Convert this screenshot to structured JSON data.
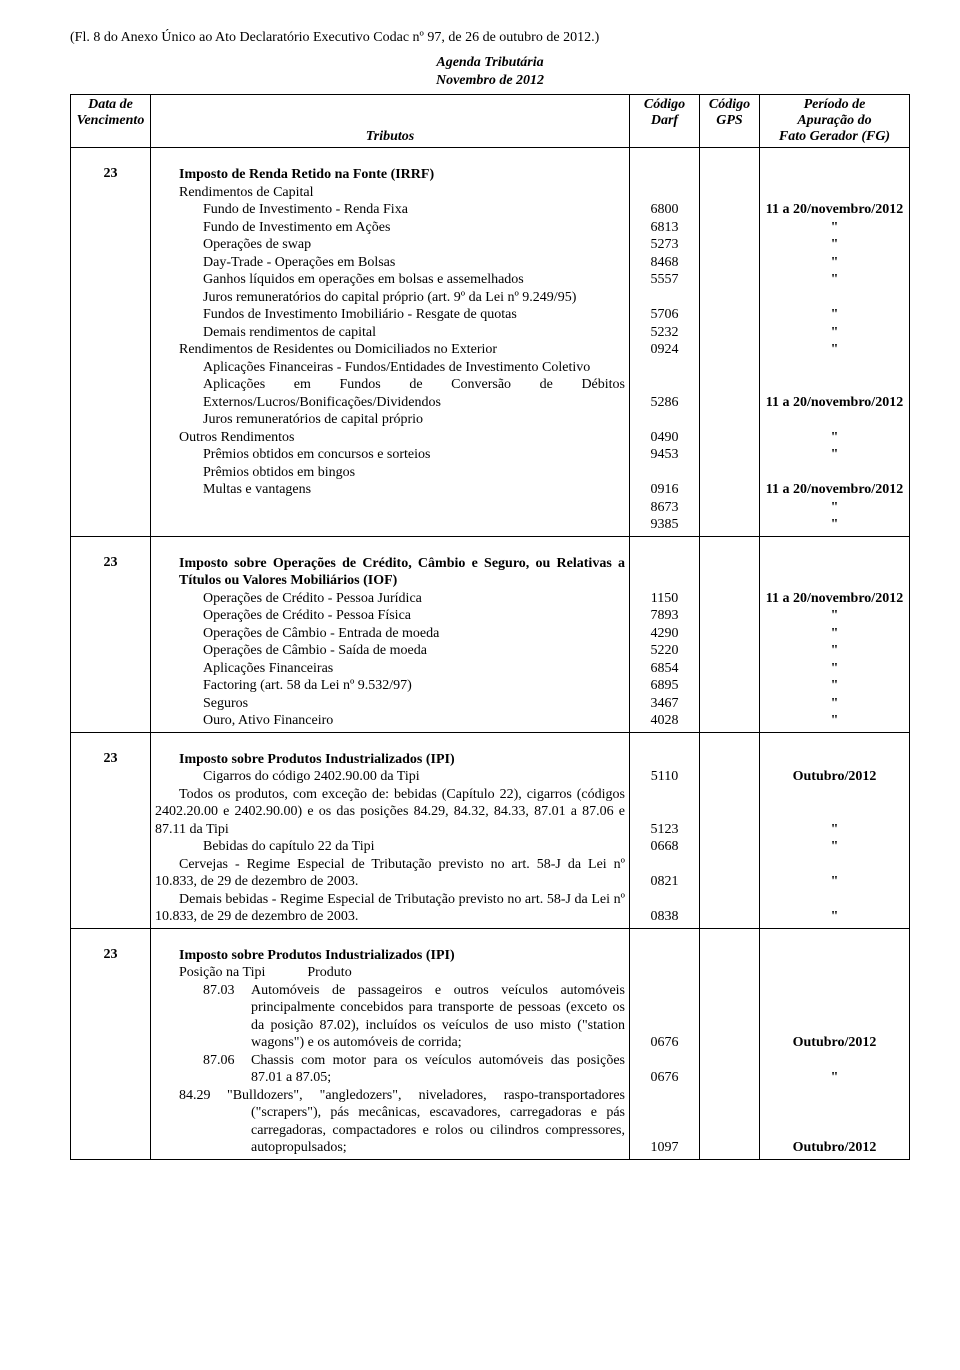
{
  "header_note": "(Fl. 8 do Anexo Único ao Ato Declaratório Executivo Codac nº 97, de 26 de outubro de 2012.)",
  "title_line1": "Agenda Tributária",
  "title_line2": "Novembro de 2012",
  "col_headers": {
    "venc1": "Data de",
    "venc2": "Vencimento",
    "trib": "Tributos",
    "darf1": "Código",
    "darf2": "Darf",
    "gps1": "Código",
    "gps2": "GPS",
    "per1": "Período de",
    "per2": "Apuração do",
    "per3": "Fato Gerador (FG)"
  },
  "sections": [
    {
      "venc": "23",
      "title": "Imposto de Renda Retido na Fonte (IRRF)",
      "groups": [
        {
          "heading": "Rendimentos de Capital",
          "lines": [
            {
              "label": "Fundo de Investimento - Renda Fixa",
              "darf": "6800",
              "per": "11 a 20/novembro/2012"
            },
            {
              "label": "Fundo de Investimento em Ações",
              "darf": "6813",
              "per": "\""
            },
            {
              "label": "Operações de swap",
              "darf": "5273",
              "per": "\""
            },
            {
              "label": "Day-Trade - Operações em Bolsas",
              "darf": "8468",
              "per": "\""
            },
            {
              "label": "Ganhos líquidos em operações em bolsas e assemelhados",
              "darf": "5557",
              "per": "\""
            },
            {
              "label": "Juros remuneratórios do capital próprio (art. 9º da Lei nº 9.249/95)",
              "darf": "5706",
              "per": "\"",
              "wrap2": true
            },
            {
              "label": "Fundos de Investimento Imobiliário - Resgate de quotas",
              "darf": "5232",
              "per": "\""
            },
            {
              "label": "Demais rendimentos de capital",
              "darf": "0924",
              "per": "\""
            }
          ]
        },
        {
          "heading": "Rendimentos de Residentes ou Domiciliados no Exterior",
          "lines": [
            {
              "label": "Aplicações Financeiras - Fundos/Entidades de Investimento Coletivo",
              "darf": "5286",
              "per": "11 a 20/novembro/2012",
              "wrap2": true
            },
            {
              "label": "Aplicações em Fundos de Conversão de Débitos Externos/Lucros/Bonificações/Dividendos",
              "darf": "0490",
              "per": "\"",
              "wrap2": true
            },
            {
              "label": "Juros remuneratórios de capital próprio",
              "darf": "9453",
              "per": "\""
            }
          ]
        },
        {
          "heading": "Outros Rendimentos",
          "lines": [
            {
              "label": "Prêmios obtidos em concursos e sorteios",
              "darf": "0916",
              "per": "11 a 20/novembro/2012"
            },
            {
              "label": "Prêmios obtidos em bingos",
              "darf": "8673",
              "per": "\""
            },
            {
              "label": "Multas e vantagens",
              "darf": "9385",
              "per": "\""
            }
          ]
        }
      ]
    },
    {
      "venc": "23",
      "title": "Imposto sobre Operações de Crédito, Câmbio e Seguro, ou Relativas a Títulos ou Valores Mobiliários (IOF)",
      "title_wrap2": true,
      "lines": [
        {
          "label": "Operações de Crédito - Pessoa Jurídica",
          "darf": "1150",
          "per": "11 a 20/novembro/2012"
        },
        {
          "label": "Operações de Crédito - Pessoa Física",
          "darf": "7893",
          "per": "\""
        },
        {
          "label": "Operações de Câmbio - Entrada de moeda",
          "darf": "4290",
          "per": "\""
        },
        {
          "label": "Operações de Câmbio - Saída de moeda",
          "darf": "5220",
          "per": "\""
        },
        {
          "label": "Aplicações Financeiras",
          "darf": "6854",
          "per": "\""
        },
        {
          "label": "Factoring (art. 58 da Lei nº 9.532/97)",
          "darf": "6895",
          "per": "\""
        },
        {
          "label": "Seguros",
          "darf": "3467",
          "per": "\""
        },
        {
          "label": "Ouro, Ativo Financeiro",
          "darf": "4028",
          "per": "\""
        }
      ]
    },
    {
      "venc": "23",
      "title": "Imposto sobre Produtos Industrializados (IPI)",
      "lines": [
        {
          "label": "Cigarros do código 2402.90.00 da Tipi",
          "darf": "5110",
          "per": "Outubro/2012"
        },
        {
          "label": "Todos os produtos, com exceção de: bebidas (Capítulo 22), cigarros (códigos 2402.20.00 e 2402.90.00) e os das posições 84.29, 84.32, 84.33, 87.01 a 87.06 e 87.11 da Tipi",
          "darf": "5123",
          "per": "\"",
          "wrap3": true,
          "ind0": true
        },
        {
          "label": "Bebidas do capítulo 22 da Tipi",
          "darf": "0668",
          "per": "\""
        },
        {
          "label": "Cervejas - Regime Especial de Tributação previsto no art. 58-J da Lei nº 10.833, de 29 de dezembro de 2003.",
          "darf": "0821",
          "per": "\"",
          "wrap2": true,
          "ind0": true
        },
        {
          "label": "Demais bebidas - Regime Especial de Tributação previsto no art. 58-J da Lei nº 10.833, de 29 de dezembro de 2003.",
          "darf": "0838",
          "per": "\"",
          "wrap2": true,
          "ind0": true
        }
      ]
    },
    {
      "venc": "23",
      "title": "Imposto sobre Produtos Industrializados (IPI)",
      "subheading": "Posição na Tipi            Produto",
      "prod_lines": [
        {
          "code": "87.03",
          "text": "Automóveis de passageiros e outros veículos automóveis principalmente concebidos para transporte de pessoas (exceto os da posição 87.02), incluídos os veículos de uso misto (\"station wagons\") e os automóveis de corrida;",
          "darf": "0676",
          "per": "Outubro/2012",
          "wrap": 4
        },
        {
          "code": "87.06",
          "text": "Chassis com motor para os veículos automóveis das posições 87.01 a 87.05;",
          "darf": "0676",
          "per": "\"",
          "wrap": 2
        },
        {
          "code": "84.29",
          "text": "\"Bulldozers\", \"angledozers\", niveladores, raspo-transportadores (\"scrapers\"), pás mecânicas, escavadores, carregadoras e pás carregadoras, compactadores e rolos ou cilindros compressores, autopropulsados;",
          "special_indent": true,
          "darf": "1097",
          "per": "Outubro/2012",
          "wrap": 4
        }
      ]
    }
  ]
}
